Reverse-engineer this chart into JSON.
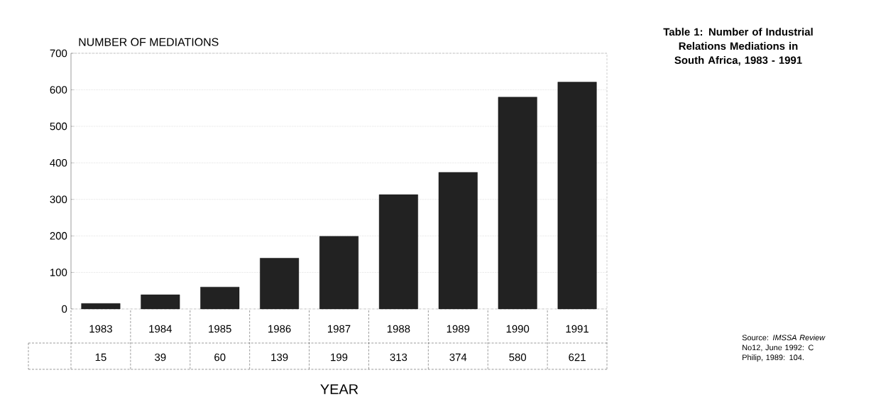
{
  "chart_data": {
    "type": "bar",
    "title": "Table 1: Number of Industrial Relations Mediations in South Africa, 1983 - 1991",
    "ylabel": "NUMBER OF MEDIATIONS",
    "xlabel": "YEAR",
    "categories": [
      "1983",
      "1984",
      "1985",
      "1986",
      "1987",
      "1988",
      "1989",
      "1990",
      "1991"
    ],
    "values": [
      15,
      39,
      60,
      139,
      199,
      313,
      374,
      580,
      621
    ],
    "color": "#222222",
    "ylim": [
      0,
      700
    ],
    "yticks": [
      0,
      100,
      200,
      300,
      400,
      500,
      600,
      700
    ],
    "grid": "y",
    "data_labels": true,
    "annotations": [
      "Source: *IMSSA Review* No12, June 1992: C Philip, 1989: 104."
    ]
  }
}
